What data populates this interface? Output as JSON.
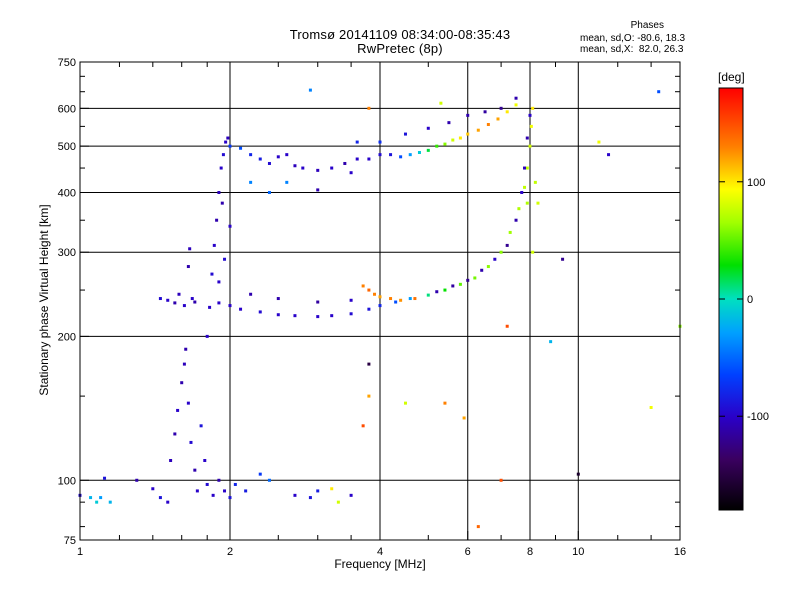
{
  "header": {
    "title_line1": "Tromsø 20141109 08:34:00-08:35:43",
    "title_line2": "RwPretec (8p)"
  },
  "stats": {
    "heading": "Phases",
    "line_o": "mean, sd,O: -80.6, 18.3",
    "line_x": "mean, sd,X:  82.0, 26.3"
  },
  "colorbar": {
    "unit": "[deg]",
    "range": [
      -180,
      180
    ],
    "ticks": [
      100,
      0,
      -100
    ]
  },
  "chart_data": {
    "type": "scatter",
    "title": "Tromsø 20141109 08:34:00-08:35:43",
    "subtitle": "RwPretec (8p)",
    "xlabel": "Frequency [MHz]",
    "ylabel": "Stationary phase Virtual Height [km]",
    "xscale": "log",
    "yscale": "log",
    "xlim": [
      1,
      16
    ],
    "ylim": [
      75,
      750
    ],
    "xticks": [
      1,
      2,
      4,
      6,
      8,
      10,
      16
    ],
    "yticks": [
      75,
      100,
      200,
      300,
      400,
      500,
      600,
      750
    ],
    "grid": true,
    "color_by": "phase_deg",
    "series": [
      {
        "points": [
          [
            1.0,
            93,
            -95
          ],
          [
            1.05,
            92,
            -20
          ],
          [
            1.08,
            90,
            -10
          ],
          [
            1.1,
            92,
            -30
          ],
          [
            1.15,
            90,
            -20
          ],
          [
            1.12,
            101,
            -90
          ],
          [
            1.3,
            100,
            -110
          ],
          [
            1.4,
            96,
            -100
          ],
          [
            1.45,
            92,
            -90
          ],
          [
            1.5,
            90,
            -100
          ],
          [
            1.52,
            110,
            -105
          ],
          [
            1.55,
            125,
            -110
          ],
          [
            1.57,
            140,
            -100
          ],
          [
            1.6,
            160,
            -110
          ],
          [
            1.62,
            175,
            -105
          ],
          [
            1.63,
            188,
            -110
          ],
          [
            1.65,
            145,
            -100
          ],
          [
            1.67,
            120,
            -95
          ],
          [
            1.7,
            105,
            -110
          ],
          [
            1.72,
            95,
            -100
          ],
          [
            1.75,
            130,
            -90
          ],
          [
            1.78,
            110,
            -100
          ],
          [
            1.8,
            98,
            -95
          ],
          [
            1.85,
            93,
            -100
          ],
          [
            1.9,
            100,
            -110
          ],
          [
            1.95,
            95,
            -100
          ],
          [
            2.0,
            92,
            -90
          ],
          [
            2.05,
            98,
            -80
          ],
          [
            2.15,
            95,
            -85
          ],
          [
            2.3,
            103,
            -70
          ],
          [
            2.4,
            100,
            -50
          ],
          [
            2.7,
            93,
            -100
          ],
          [
            2.9,
            92,
            -90
          ],
          [
            3.0,
            95,
            -85
          ],
          [
            3.2,
            96,
            100
          ],
          [
            3.3,
            90,
            80
          ],
          [
            3.5,
            93,
            -100
          ]
        ]
      },
      {
        "points": [
          [
            1.45,
            240,
            -95
          ],
          [
            1.5,
            238,
            -100
          ],
          [
            1.55,
            235,
            -110
          ],
          [
            1.58,
            245,
            -105
          ],
          [
            1.62,
            232,
            -100
          ],
          [
            1.65,
            280,
            -110
          ],
          [
            1.66,
            305,
            -105
          ],
          [
            1.68,
            240,
            -100
          ],
          [
            1.7,
            236,
            -110
          ]
        ]
      },
      {
        "points": [
          [
            1.8,
            200,
            -100
          ],
          [
            1.82,
            230,
            -100
          ],
          [
            1.84,
            270,
            -95
          ],
          [
            1.86,
            310,
            -100
          ],
          [
            1.88,
            350,
            -110
          ],
          [
            1.9,
            400,
            -105
          ],
          [
            1.92,
            450,
            -100
          ],
          [
            1.94,
            480,
            -95
          ],
          [
            1.96,
            510,
            -100
          ],
          [
            1.98,
            520,
            -105
          ],
          [
            2.0,
            340,
            -100
          ],
          [
            1.95,
            290,
            -95
          ],
          [
            1.9,
            260,
            -100
          ],
          [
            1.93,
            380,
            -110
          ]
        ]
      },
      {
        "points": [
          [
            2.0,
            500,
            -70
          ],
          [
            2.1,
            495,
            -60
          ],
          [
            2.2,
            480,
            -80
          ],
          [
            2.3,
            470,
            -85
          ],
          [
            2.4,
            460,
            -95
          ],
          [
            2.5,
            475,
            -100
          ],
          [
            2.6,
            480,
            -100
          ],
          [
            2.7,
            455,
            -105
          ],
          [
            2.8,
            450,
            -100
          ],
          [
            3.0,
            445,
            -105
          ],
          [
            3.2,
            450,
            -100
          ],
          [
            3.4,
            460,
            -110
          ],
          [
            3.6,
            470,
            -100
          ],
          [
            3.8,
            470,
            -100
          ],
          [
            4.0,
            480,
            -95
          ],
          [
            4.2,
            480,
            -90
          ],
          [
            4.4,
            475,
            -60
          ],
          [
            4.6,
            480,
            -30
          ],
          [
            4.8,
            485,
            -10
          ],
          [
            5.0,
            490,
            20
          ],
          [
            5.2,
            500,
            40
          ],
          [
            5.4,
            505,
            60
          ],
          [
            5.6,
            515,
            80
          ],
          [
            5.8,
            520,
            100
          ],
          [
            6.0,
            530,
            110
          ],
          [
            6.3,
            540,
            120
          ],
          [
            6.6,
            555,
            130
          ],
          [
            6.9,
            570,
            120
          ],
          [
            7.2,
            590,
            100
          ],
          [
            7.5,
            610,
            90
          ],
          [
            2.2,
            420,
            -40
          ],
          [
            2.4,
            400,
            -50
          ],
          [
            2.6,
            420,
            -40
          ],
          [
            3.0,
            405,
            -110
          ],
          [
            3.5,
            440,
            -100
          ],
          [
            3.6,
            510,
            -80
          ],
          [
            4.0,
            510,
            -75
          ],
          [
            4.5,
            530,
            -90
          ],
          [
            5.0,
            545,
            -100
          ],
          [
            5.5,
            560,
            -110
          ],
          [
            6.0,
            580,
            -110
          ],
          [
            6.5,
            590,
            -115
          ],
          [
            7.0,
            600,
            -120
          ],
          [
            7.5,
            630,
            -110
          ]
        ]
      },
      {
        "points": [
          [
            1.9,
            235,
            -100
          ],
          [
            2.0,
            232,
            -100
          ],
          [
            2.1,
            228,
            -100
          ],
          [
            2.3,
            225,
            -95
          ],
          [
            2.5,
            222,
            -100
          ],
          [
            2.7,
            221,
            -100
          ],
          [
            3.0,
            220,
            -100
          ],
          [
            3.2,
            221,
            -100
          ],
          [
            3.5,
            223,
            -95
          ],
          [
            3.8,
            228,
            -90
          ],
          [
            4.0,
            232,
            -80
          ],
          [
            4.3,
            236,
            -60
          ],
          [
            4.6,
            240,
            -30
          ],
          [
            5.0,
            244,
            10
          ],
          [
            5.4,
            250,
            30
          ],
          [
            5.8,
            257,
            50
          ],
          [
            6.2,
            265,
            55
          ],
          [
            6.6,
            280,
            60
          ],
          [
            7.0,
            300,
            60
          ],
          [
            7.3,
            330,
            65
          ],
          [
            7.6,
            370,
            70
          ],
          [
            7.8,
            410,
            75
          ],
          [
            7.9,
            450,
            75
          ],
          [
            8.0,
            500,
            80
          ],
          [
            8.05,
            550,
            90
          ],
          [
            8.1,
            600,
            100
          ],
          [
            2.2,
            245,
            -110
          ],
          [
            2.5,
            240,
            -110
          ],
          [
            3.0,
            236,
            -115
          ],
          [
            3.5,
            238,
            -100
          ],
          [
            3.7,
            255,
            130
          ],
          [
            3.8,
            250,
            140
          ],
          [
            3.9,
            245,
            130
          ],
          [
            4.0,
            242,
            120
          ],
          [
            4.2,
            240,
            130
          ],
          [
            4.4,
            238,
            125
          ],
          [
            4.7,
            240,
            135
          ],
          [
            5.2,
            248,
            -110
          ],
          [
            5.6,
            255,
            -115
          ],
          [
            6.0,
            262,
            -120
          ],
          [
            6.4,
            275,
            -110
          ],
          [
            6.8,
            290,
            -100
          ],
          [
            7.2,
            310,
            -120
          ],
          [
            7.5,
            350,
            -110
          ],
          [
            7.7,
            400,
            -100
          ],
          [
            7.8,
            450,
            -105
          ],
          [
            7.9,
            520,
            -110
          ],
          [
            8.0,
            580,
            -100
          ],
          [
            7.9,
            380,
            70
          ],
          [
            8.1,
            300,
            80
          ],
          [
            8.2,
            420,
            75
          ],
          [
            8.3,
            380,
            80
          ]
        ]
      },
      {
        "points": [
          [
            2.9,
            655,
            -40
          ],
          [
            3.8,
            600,
            130
          ],
          [
            5.3,
            615,
            80
          ],
          [
            3.8,
            175,
            -150
          ],
          [
            3.8,
            150,
            120
          ],
          [
            3.7,
            130,
            150
          ],
          [
            4.5,
            145,
            80
          ],
          [
            5.4,
            145,
            130
          ],
          [
            5.9,
            135,
            120
          ],
          [
            6.3,
            80,
            140
          ],
          [
            7.0,
            100,
            150
          ],
          [
            7.2,
            210,
            150
          ],
          [
            8.8,
            195,
            -20
          ],
          [
            9.3,
            290,
            -120
          ],
          [
            10.0,
            103,
            -160
          ],
          [
            11.0,
            510,
            90
          ],
          [
            11.5,
            480,
            -100
          ],
          [
            14.0,
            142,
            90
          ],
          [
            14.5,
            650,
            -60
          ],
          [
            16.0,
            210,
            60
          ]
        ]
      }
    ]
  }
}
